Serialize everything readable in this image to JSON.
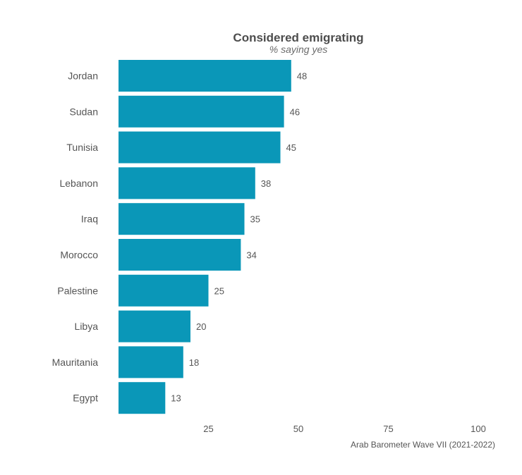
{
  "chart_data": {
    "type": "bar",
    "orientation": "horizontal",
    "title": "Considered emigrating",
    "subtitle": "% saying yes",
    "caption": "Arab Barometer Wave VII (2021-2022)",
    "categories": [
      "Jordan",
      "Sudan",
      "Tunisia",
      "Lebanon",
      "Iraq",
      "Morocco",
      "Palestine",
      "Libya",
      "Mauritania",
      "Egypt"
    ],
    "values": [
      48,
      46,
      45,
      38,
      35,
      34,
      25,
      20,
      18,
      13
    ],
    "xlim": [
      0,
      100
    ],
    "xticks": [
      25,
      50,
      75,
      100
    ],
    "grid": false,
    "bar_color": "#0a97b8"
  }
}
